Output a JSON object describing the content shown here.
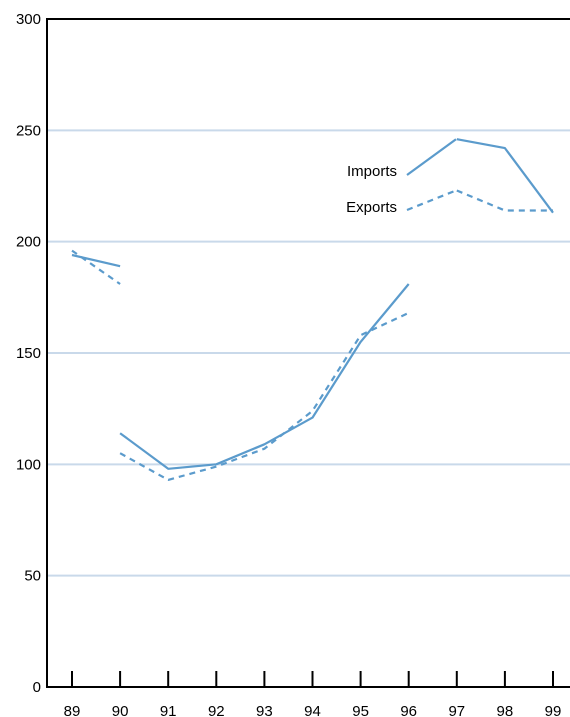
{
  "chart_data": {
    "type": "line",
    "x_categories": [
      "89",
      "90",
      "91",
      "92",
      "93",
      "94",
      "95",
      "96",
      "97",
      "98",
      "99"
    ],
    "ylim": [
      0,
      300
    ],
    "y_ticks": [
      0,
      50,
      100,
      150,
      200,
      250,
      300
    ],
    "grid": true,
    "legend_position": "top-right",
    "series": [
      {
        "name": "Imports",
        "style": "solid",
        "segments": [
          [
            {
              "x": "89",
              "y": 194
            },
            {
              "x": "90",
              "y": 189
            }
          ],
          [
            {
              "x": "90",
              "y": 114
            },
            {
              "x": "91",
              "y": 98
            },
            {
              "x": "92",
              "y": 100
            },
            {
              "x": "93",
              "y": 109
            },
            {
              "x": "94",
              "y": 121
            },
            {
              "x": "95",
              "y": 155
            },
            {
              "x": "96",
              "y": 181
            }
          ],
          [
            {
              "x": "97",
              "y": 246
            },
            {
              "x": "98",
              "y": 242
            },
            {
              "x": "99",
              "y": 213
            }
          ]
        ]
      },
      {
        "name": "Exports",
        "style": "dashed",
        "segments": [
          [
            {
              "x": "89",
              "y": 196
            },
            {
              "x": "90",
              "y": 181
            }
          ],
          [
            {
              "x": "90",
              "y": 105
            },
            {
              "x": "91",
              "y": 93
            },
            {
              "x": "92",
              "y": 99
            },
            {
              "x": "93",
              "y": 107
            },
            {
              "x": "94",
              "y": 124
            },
            {
              "x": "95",
              "y": 158
            },
            {
              "x": "96",
              "y": 168
            }
          ],
          [
            {
              "x": "97",
              "y": 223
            },
            {
              "x": "98",
              "y": 214
            },
            {
              "x": "99",
              "y": 214
            }
          ]
        ]
      }
    ]
  },
  "colors": {
    "line": "#5b9bcc",
    "grid": "#c9d9ea",
    "axis": "#000000"
  }
}
